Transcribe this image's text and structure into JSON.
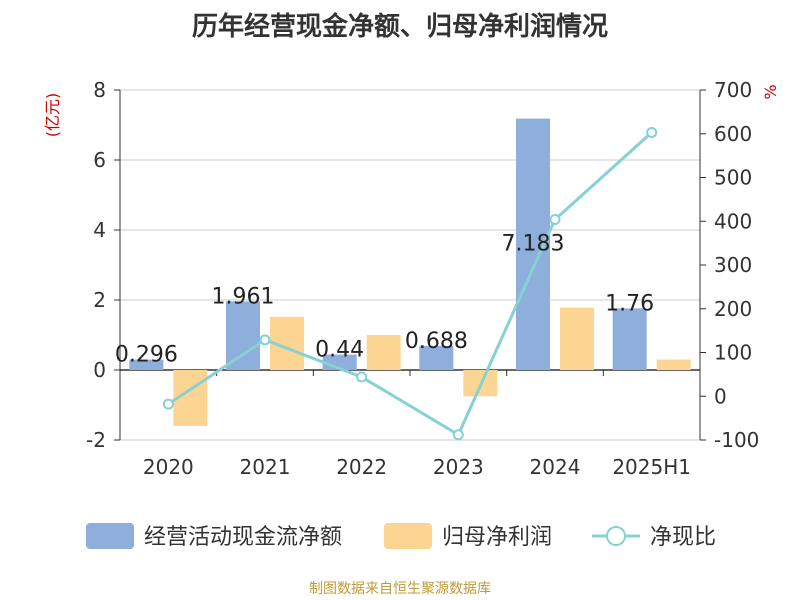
{
  "chart_data": {
    "type": "bar",
    "title": "历年经营现金净额、归母净利润情况",
    "categories": [
      "2020",
      "2021",
      "2022",
      "2023",
      "2024",
      "2025H1"
    ],
    "series": [
      {
        "name": "经营活动现金流净额",
        "type": "bar",
        "axis": "left",
        "color": "#8eaedb",
        "values": [
          0.296,
          1.961,
          0.44,
          0.688,
          7.183,
          1.76
        ],
        "labels": [
          "0.296",
          "1.961",
          "0.44",
          "0.688",
          "7.183",
          "1.76"
        ]
      },
      {
        "name": "归母净利润",
        "type": "bar",
        "axis": "left",
        "color": "#fdd593",
        "values": [
          -1.6,
          1.52,
          1.0,
          -0.75,
          1.78,
          0.3
        ]
      },
      {
        "name": "净现比",
        "type": "line",
        "axis": "right",
        "color": "#86d1d3",
        "values": [
          -18,
          129,
          44,
          -88,
          404,
          603
        ]
      }
    ],
    "y_left": {
      "label": "(亿元)",
      "min": -2,
      "max": 8,
      "ticks": [
        -2,
        0,
        2,
        4,
        6,
        8
      ],
      "tick_labels": [
        "-2",
        "0",
        "2",
        "4",
        "6",
        "8"
      ]
    },
    "y_right": {
      "label": "%",
      "min": -100,
      "max": 700,
      "ticks": [
        -100,
        0,
        100,
        200,
        300,
        400,
        500,
        600,
        700
      ],
      "tick_labels": [
        "-100",
        "0",
        "100",
        "200",
        "300",
        "400",
        "500",
        "600",
        "700"
      ]
    },
    "grid": true,
    "legend_position": "bottom"
  },
  "source_note": "制图数据来自恒生聚源数据库"
}
